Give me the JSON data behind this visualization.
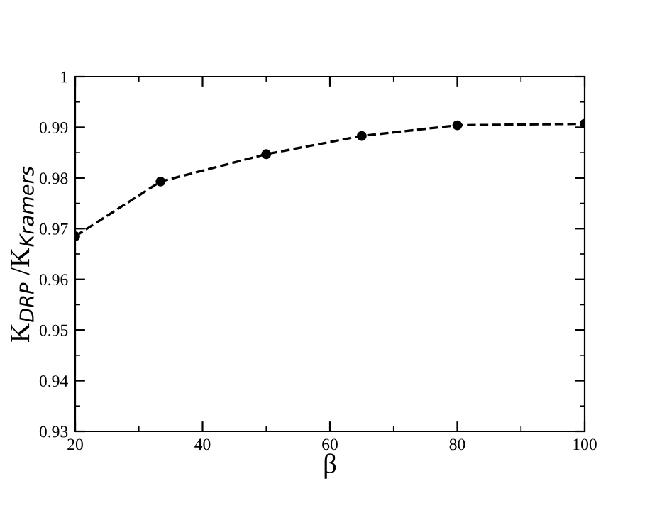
{
  "chart_data": {
    "type": "line",
    "xlabel": "β",
    "ylabel": "K$_{DRP}$ /K$_{Kramers}$",
    "x": [
      20,
      33.4,
      50,
      65,
      80,
      100
    ],
    "series": [
      {
        "color": "#000000",
        "values": [
          0.9685,
          0.9793,
          0.9847,
          0.9883,
          0.9904,
          0.9907
        ]
      }
    ],
    "xlim": [
      20,
      100
    ],
    "ylim": [
      0.93,
      1
    ],
    "xticks": [
      20,
      40,
      60,
      80,
      100
    ],
    "yticks": [
      0.93,
      0.94,
      0.95,
      0.96,
      0.97,
      0.98,
      0.99,
      1
    ],
    "marker": "circle",
    "line_style": "dashed",
    "grid": false,
    "legend": false
  }
}
